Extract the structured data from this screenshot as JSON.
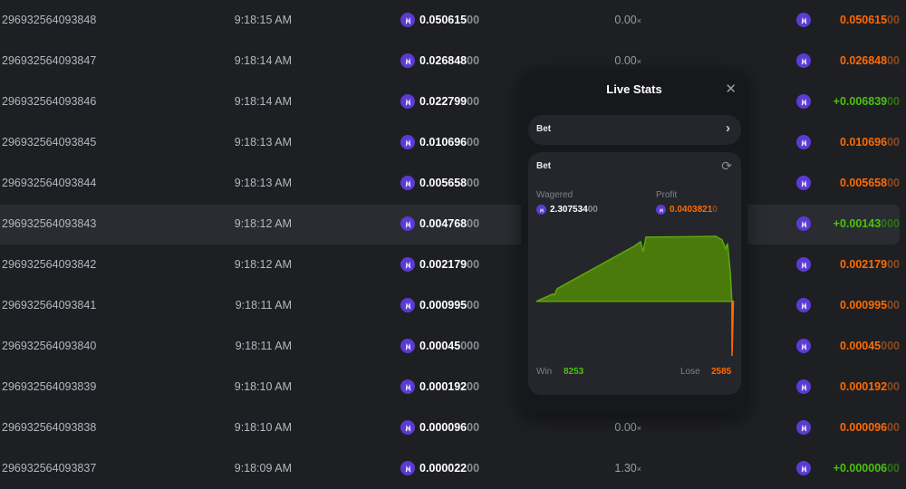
{
  "rows": [
    {
      "id": "296932564093848",
      "time": "9:18:15 AM",
      "bet": "0.050615",
      "bet_dim": "00",
      "mult": "0.00",
      "payout": "0.050615",
      "payout_dim": "00",
      "win": false
    },
    {
      "id": "296932564093847",
      "time": "9:18:14 AM",
      "bet": "0.026848",
      "bet_dim": "00",
      "mult": "0.00",
      "payout": "0.026848",
      "payout_dim": "00",
      "win": false
    },
    {
      "id": "296932564093846",
      "time": "9:18:14 AM",
      "bet": "0.022799",
      "bet_dim": "00",
      "mult": "",
      "payout": "+0.006839",
      "payout_dim": "00",
      "win": true
    },
    {
      "id": "296932564093845",
      "time": "9:18:13 AM",
      "bet": "0.010696",
      "bet_dim": "00",
      "mult": "",
      "payout": "0.010696",
      "payout_dim": "00",
      "win": false
    },
    {
      "id": "296932564093844",
      "time": "9:18:13 AM",
      "bet": "0.005658",
      "bet_dim": "00",
      "mult": "",
      "payout": "0.005658",
      "payout_dim": "00",
      "win": false
    },
    {
      "id": "296932564093843",
      "time": "9:18:12 AM",
      "bet": "0.004768",
      "bet_dim": "00",
      "mult": "",
      "payout": "+0.00143",
      "payout_dim": "000",
      "win": true
    },
    {
      "id": "296932564093842",
      "time": "9:18:12 AM",
      "bet": "0.002179",
      "bet_dim": "00",
      "mult": "",
      "payout": "0.002179",
      "payout_dim": "00",
      "win": false
    },
    {
      "id": "296932564093841",
      "time": "9:18:11 AM",
      "bet": "0.000995",
      "bet_dim": "00",
      "mult": "",
      "payout": "0.000995",
      "payout_dim": "00",
      "win": false
    },
    {
      "id": "296932564093840",
      "time": "9:18:11 AM",
      "bet": "0.00045",
      "bet_dim": "000",
      "mult": "",
      "payout": "0.00045",
      "payout_dim": "000",
      "win": false
    },
    {
      "id": "296932564093839",
      "time": "9:18:10 AM",
      "bet": "0.000192",
      "bet_dim": "00",
      "mult": "",
      "payout": "0.000192",
      "payout_dim": "00",
      "win": false
    },
    {
      "id": "296932564093838",
      "time": "9:18:10 AM",
      "bet": "0.000096",
      "bet_dim": "00",
      "mult": "0.00",
      "payout": "0.000096",
      "payout_dim": "00",
      "win": false
    },
    {
      "id": "296932564093837",
      "time": "9:18:09 AM",
      "bet": "0.000022",
      "bet_dim": "00",
      "mult": "1.30",
      "payout": "+0.000006",
      "payout_dim": "00",
      "win": true
    }
  ],
  "highlighted_row": 5,
  "mult_suffix": "×",
  "colors": {
    "win": "#4cc00e",
    "lose": "#ff6a00",
    "coin": "#5a3bd4",
    "fill": "#4a7a0c"
  },
  "live_stats": {
    "title": "Live Stats",
    "dropdown": "Bet",
    "card_title": "Bet",
    "wagered_label": "Wagered",
    "wagered": "2.307534",
    "wagered_dim": "00",
    "profit_label": "Profit",
    "profit": "0.0403821",
    "profit_dim": "0",
    "win_label": "Win",
    "win": "8253",
    "lose_label": "Lose",
    "lose": "2585"
  },
  "chart_data": {
    "type": "area",
    "x": [
      0,
      903,
      1003,
      1154,
      5419,
      5770,
      5921,
      6071,
      9935,
      10286,
      10487,
      10587,
      10738,
      10830,
      10838
    ],
    "y": [
      0,
      0.0054,
      0.0047,
      0.0094,
      0.0409,
      0.0442,
      0.0369,
      0.0476,
      0.0482,
      0.0456,
      0.0389,
      0.0429,
      0.0221,
      0,
      -0.0404
    ],
    "ylim": [
      -0.0404,
      0.0482
    ],
    "grid": false
  }
}
